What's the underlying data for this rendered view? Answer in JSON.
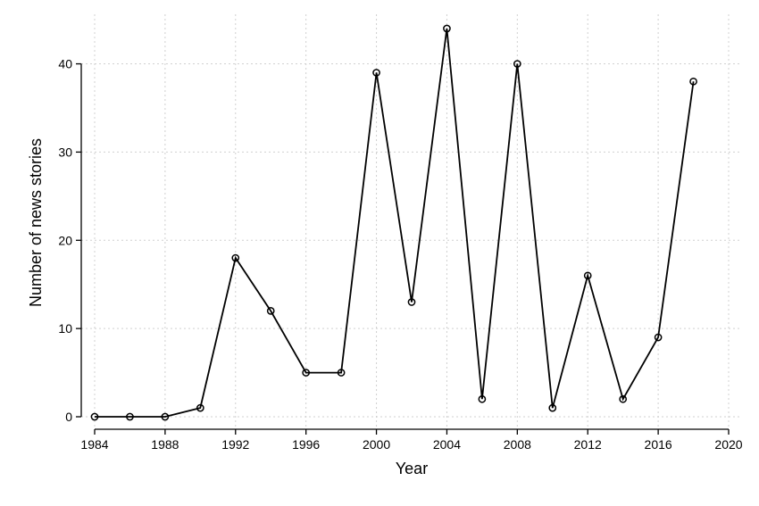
{
  "chart_data": {
    "type": "line",
    "xlabel": "Year",
    "ylabel": "Number of news stories",
    "xlim": [
      1984,
      2020
    ],
    "ylim": [
      0,
      44
    ],
    "x_ticks": [
      1984,
      1988,
      1992,
      1996,
      2000,
      2004,
      2008,
      2012,
      2016,
      2020
    ],
    "y_ticks": [
      0,
      10,
      20,
      30,
      40
    ],
    "grid": true,
    "marker": "hollow-circle",
    "series": [
      {
        "x": [
          1984,
          1986,
          1988,
          1990,
          1992,
          1994,
          1996,
          1998,
          2000,
          2002,
          2004,
          2006,
          2008,
          2010,
          2012,
          2014,
          2016,
          2018
        ],
        "y": [
          0,
          0,
          0,
          1,
          18,
          12,
          5,
          5,
          39,
          13,
          44,
          2,
          40,
          1,
          16,
          2,
          9,
          38
        ]
      }
    ]
  }
}
